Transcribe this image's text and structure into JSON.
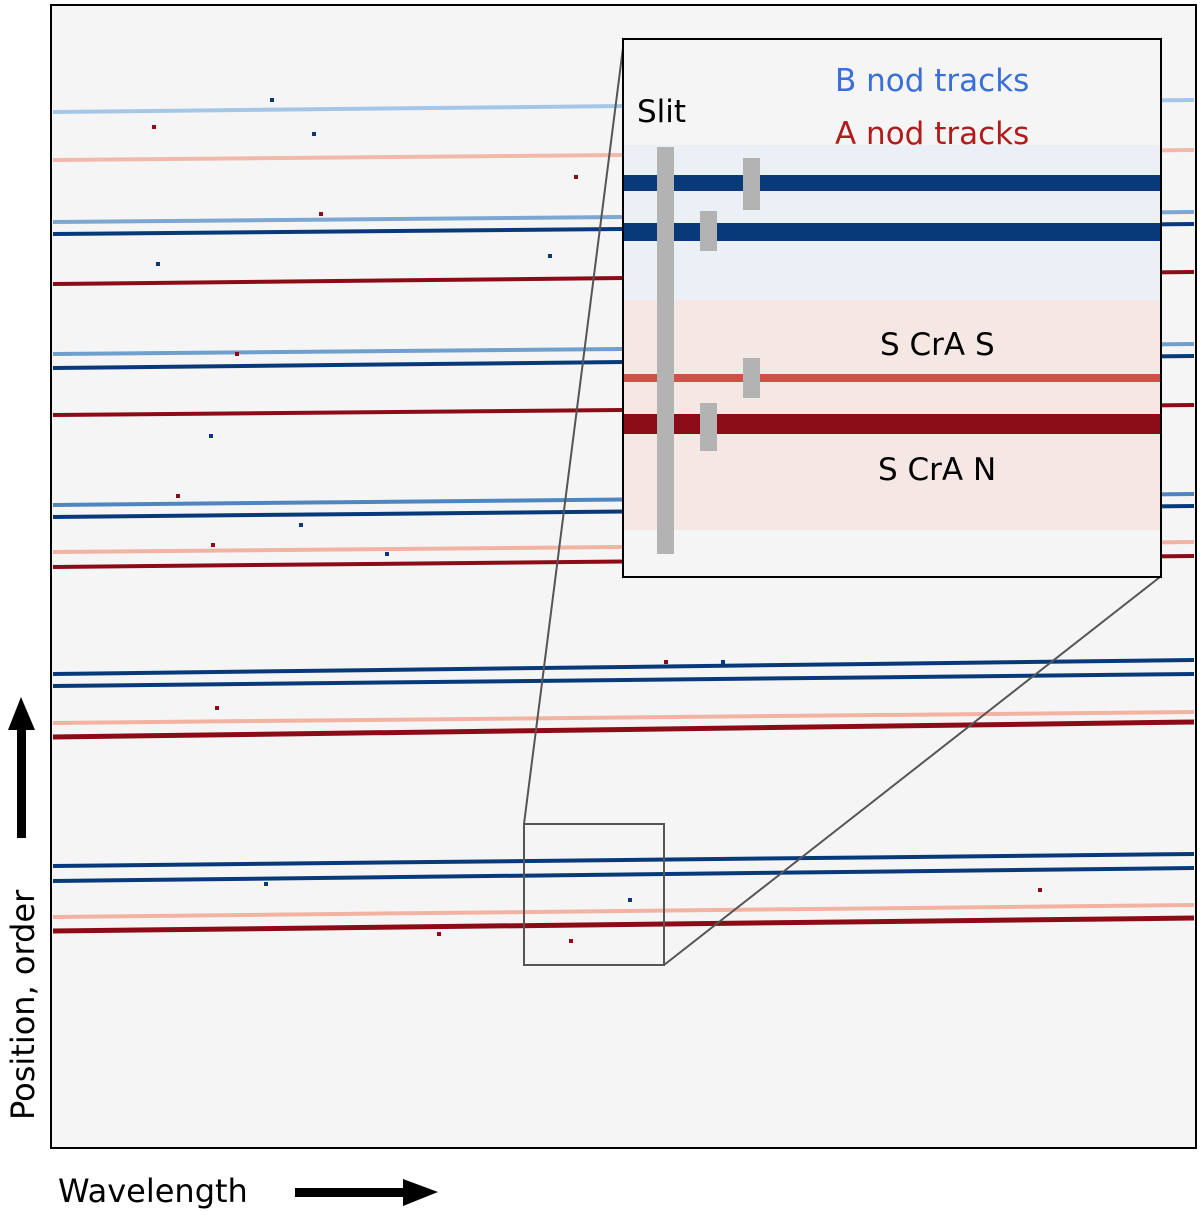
{
  "axes": {
    "x_label": "Wavelength",
    "y_label": "Position, order"
  },
  "inset": {
    "slit_label": "Slit",
    "legend_b": "B nod tracks",
    "legend_a": "A nod tracks",
    "source_south": "S CrA S",
    "source_north": "S CrA N"
  },
  "colors": {
    "background": "#f5f5f5",
    "b_nod": "#083a7a",
    "a_nod": "#8b0b17",
    "b_legend": "#3a6fd6",
    "a_legend": "#b01c1c",
    "slit": "#b3b3b3"
  }
}
